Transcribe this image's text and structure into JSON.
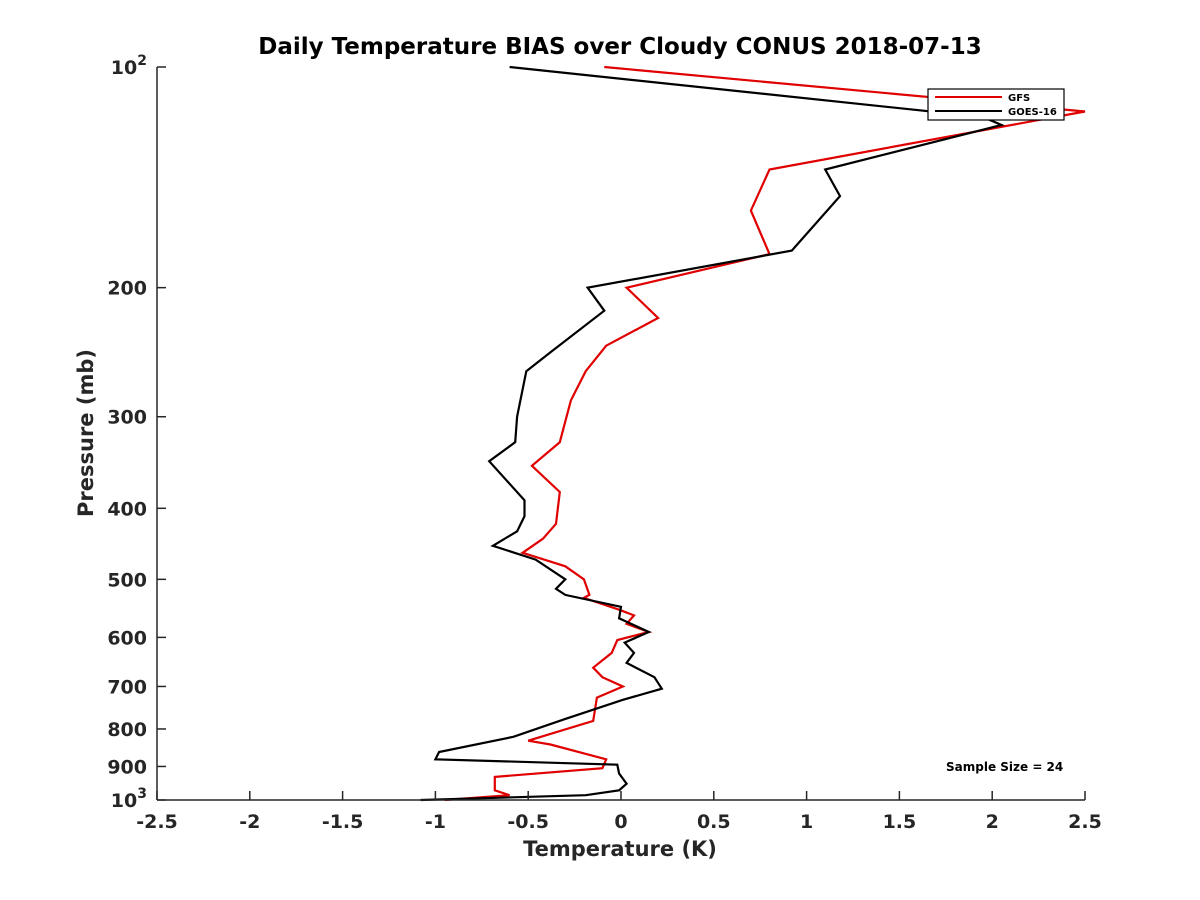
{
  "chart_data": {
    "type": "line",
    "title": "Daily Temperature BIAS over Cloudy CONUS 2018-07-13",
    "xlabel": "Temperature (K)",
    "ylabel": "Pressure (mb)",
    "xlim": [
      -2.5,
      2.5
    ],
    "ylim": [
      100,
      1000
    ],
    "y_scale": "log",
    "y_reversed": true,
    "x_ticks": [
      -2.5,
      -2,
      -1.5,
      -1,
      -0.5,
      0,
      0.5,
      1,
      1.5,
      2,
      2.5
    ],
    "x_tick_labels": [
      "-2.5",
      "-2",
      "-1.5",
      "-1",
      "-0.5",
      "0",
      "0.5",
      "1",
      "1.5",
      "2",
      "2.5"
    ],
    "y_ticks": [
      100,
      200,
      300,
      400,
      500,
      600,
      700,
      800,
      900,
      1000
    ],
    "y_tick_labels": [
      {
        "base": "10",
        "exp": "2"
      },
      {
        "base": "200",
        "exp": ""
      },
      {
        "base": "300",
        "exp": ""
      },
      {
        "base": "400",
        "exp": ""
      },
      {
        "base": "500",
        "exp": ""
      },
      {
        "base": "600",
        "exp": ""
      },
      {
        "base": "700",
        "exp": ""
      },
      {
        "base": "800",
        "exp": ""
      },
      {
        "base": "900",
        "exp": ""
      },
      {
        "base": "10",
        "exp": "3"
      }
    ],
    "grid": false,
    "legend_position": "top-right",
    "series": [
      {
        "name": "GFS",
        "color": "#e00000",
        "points": [
          [
            -0.09,
            100
          ],
          [
            2.5,
            115
          ],
          [
            0.8,
            138
          ],
          [
            0.7,
            157
          ],
          [
            0.8,
            180
          ],
          [
            0.03,
            200
          ],
          [
            0.2,
            220
          ],
          [
            -0.08,
            240
          ],
          [
            -0.19,
            260
          ],
          [
            -0.27,
            285
          ],
          [
            -0.33,
            325
          ],
          [
            -0.48,
            350
          ],
          [
            -0.33,
            380
          ],
          [
            -0.35,
            420
          ],
          [
            -0.42,
            440
          ],
          [
            -0.53,
            460
          ],
          [
            -0.3,
            480
          ],
          [
            -0.2,
            500
          ],
          [
            -0.17,
            525
          ],
          [
            -0.2,
            530
          ],
          [
            -0.01,
            550
          ],
          [
            0.07,
            560
          ],
          [
            0.03,
            575
          ],
          [
            0.15,
            590
          ],
          [
            -0.02,
            605
          ],
          [
            -0.05,
            630
          ],
          [
            -0.15,
            660
          ],
          [
            -0.1,
            680
          ],
          [
            0.01,
            700
          ],
          [
            -0.13,
            725
          ],
          [
            -0.15,
            780
          ],
          [
            -0.5,
            830
          ],
          [
            -0.38,
            840
          ],
          [
            -0.08,
            880
          ],
          [
            -0.1,
            905
          ],
          [
            -0.68,
            930
          ],
          [
            -0.68,
            970
          ],
          [
            -0.6,
            985
          ],
          [
            -0.95,
            1000
          ]
        ]
      },
      {
        "name": "GOES-16",
        "color": "#000000",
        "points": [
          [
            -0.6,
            100
          ],
          [
            1.95,
            117
          ],
          [
            2.05,
            120
          ],
          [
            1.1,
            138
          ],
          [
            1.18,
            150
          ],
          [
            0.92,
            178
          ],
          [
            -0.18,
            200
          ],
          [
            -0.09,
            215
          ],
          [
            -0.38,
            245
          ],
          [
            -0.51,
            260
          ],
          [
            -0.56,
            300
          ],
          [
            -0.57,
            325
          ],
          [
            -0.71,
            345
          ],
          [
            -0.52,
            390
          ],
          [
            -0.52,
            410
          ],
          [
            -0.56,
            430
          ],
          [
            -0.69,
            450
          ],
          [
            -0.46,
            470
          ],
          [
            -0.3,
            500
          ],
          [
            -0.35,
            515
          ],
          [
            -0.3,
            525
          ],
          [
            0.0,
            545
          ],
          [
            -0.01,
            565
          ],
          [
            0.15,
            590
          ],
          [
            0.02,
            610
          ],
          [
            0.07,
            630
          ],
          [
            0.03,
            650
          ],
          [
            0.18,
            680
          ],
          [
            0.22,
            705
          ],
          [
            0.01,
            730
          ],
          [
            -0.3,
            775
          ],
          [
            -0.58,
            820
          ],
          [
            -0.98,
            860
          ],
          [
            -1.0,
            880
          ],
          [
            -0.02,
            895
          ],
          [
            -0.01,
            920
          ],
          [
            0.03,
            950
          ],
          [
            -0.01,
            970
          ],
          [
            -0.19,
            985
          ],
          [
            -1.08,
            1000
          ]
        ]
      }
    ],
    "annotation": "Sample Size = 24"
  }
}
